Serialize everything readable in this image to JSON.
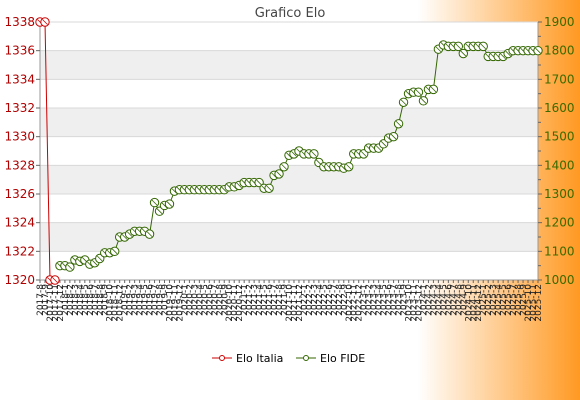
{
  "chart_data": {
    "type": "line",
    "title": "Grafico Elo",
    "xlabel": "",
    "ylabel": "",
    "x": [
      "2017-8",
      "2017-9",
      "2017-10",
      "2017-11",
      "2017-12",
      "2018-1",
      "2018-2",
      "2018-3",
      "2018-4",
      "2018-5",
      "2018-6",
      "2018-7",
      "2018-8",
      "2018-9",
      "2018-10",
      "2018-11",
      "2018-12",
      "2019-1",
      "2019-2",
      "2019-3",
      "2019-4",
      "2019-5",
      "2019-6",
      "2019-7",
      "2019-8",
      "2019-9",
      "2019-10",
      "2019-11",
      "2019-12",
      "2020-1",
      "2020-2",
      "2020-3",
      "2020-4",
      "2020-5",
      "2020-6",
      "2020-7",
      "2020-8",
      "2020-9",
      "2020-10",
      "2020-11",
      "2020-12",
      "2021-1",
      "2021-2",
      "2021-3",
      "2021-4",
      "2021-5",
      "2021-6",
      "2021-7",
      "2021-8",
      "2021-9",
      "2021-10",
      "2021-11",
      "2021-12",
      "2022-1",
      "2022-2",
      "2022-3",
      "2022-4",
      "2022-5",
      "2022-6",
      "2022-7",
      "2022-8",
      "2022-9",
      "2022-10",
      "2022-11",
      "2022-12",
      "2023-1",
      "2023-2",
      "2023-3",
      "2023-4",
      "2023-5",
      "2023-6",
      "2023-7",
      "2023-8",
      "2023-9",
      "2023-10",
      "2023-11",
      "2023-12",
      "2024-1",
      "2024-2",
      "2024-3",
      "2024-4",
      "2024-5",
      "2024-6",
      "2024-7",
      "2024-8",
      "2024-9",
      "2024-10",
      "2024-11",
      "2024-12",
      "2025-1",
      "2025-2",
      "2025-3",
      "2025-4",
      "2025-5",
      "2025-6",
      "2025-7",
      "2025-8",
      "2025-9",
      "2025-10",
      "2025-11",
      "2025-12"
    ],
    "x_tick_labels": [
      "2017-8",
      "2017-9",
      "2017-10",
      "2017-11",
      "2017-12",
      "2018-1",
      "2018-2",
      "2018-3",
      "2018-4",
      "2018-5",
      "2018-6",
      "2018-7",
      "2018-8",
      "2018-9",
      "2018-10",
      "2018-11",
      "2018-12",
      "2019-1",
      "2019-2",
      "2019-3",
      "2019-4",
      "2019-5",
      "2019-6",
      "2019-7",
      "2019-8",
      "2019-9",
      "2019-10",
      "2019-11",
      "2019-12",
      "2020-1",
      "2020-2",
      "2020-3",
      "2020-4",
      "2020-5",
      "2020-6",
      "2020-7",
      "2020-8",
      "2020-9",
      "2020-10",
      "2020-11",
      "2020-12",
      "2021-1",
      "2021-2",
      "2021-3",
      "2021-4",
      "2021-5",
      "2021-6",
      "2021-7",
      "2021-8",
      "2021-9",
      "2021-10",
      "2021-11",
      "2021-12",
      "2022-1",
      "2022-2",
      "2022-3",
      "2022-4",
      "2022-5",
      "2022-6",
      "2022-7",
      "2022-8",
      "2022-9",
      "2022-10",
      "2022-11",
      "2022-12",
      "2023-1",
      "2023-2",
      "2023-3",
      "2023-4",
      "2023-5",
      "2023-6",
      "2023-7",
      "2023-8",
      "2023-9",
      "2023-10",
      "2023-11",
      "2023-12",
      "2024-1",
      "2024-2",
      "2024-3",
      "2024-4",
      "2024-5",
      "2024-6",
      "2024-7",
      "2024-8",
      "2024-9",
      "2024-10",
      "2024-11",
      "2024-12",
      "2025-1",
      "2025-2",
      "2025-3",
      "2025-4",
      "2025-5",
      "2025-6",
      "2025-7",
      "2025-8",
      "2025-9",
      "2025-10",
      "2025-11",
      "2025-12"
    ],
    "y_left": {
      "range": [
        1320,
        1338
      ],
      "ticks": [
        1320,
        1322,
        1324,
        1326,
        1328,
        1330,
        1332,
        1334,
        1336,
        1338
      ],
      "color": "#cc0000"
    },
    "y_right": {
      "range": [
        1000,
        1900
      ],
      "ticks": [
        1000,
        1100,
        1200,
        1300,
        1400,
        1500,
        1600,
        1700,
        1800,
        1900
      ],
      "color": "#336600"
    },
    "series": [
      {
        "name": "Elo Italia",
        "axis": "left",
        "color": "#cc0000",
        "values": [
          1338,
          1338,
          1320,
          1320,
          null,
          null,
          null,
          null,
          null,
          null,
          null,
          null,
          null,
          null,
          null,
          null,
          null,
          null,
          null,
          null,
          null,
          null,
          null,
          null,
          null,
          null,
          null,
          null,
          null,
          null,
          null,
          null,
          null,
          null,
          null,
          null,
          null,
          null,
          null,
          null,
          null,
          null,
          null,
          null,
          null,
          null,
          null,
          null,
          null,
          null,
          null,
          null,
          null,
          null,
          null,
          null,
          null,
          null,
          null,
          null,
          null,
          null,
          null,
          null,
          null,
          null,
          null,
          null,
          null,
          null,
          null,
          null,
          null,
          null,
          null,
          null,
          null,
          null,
          null,
          null,
          null,
          null,
          null,
          null,
          null,
          null,
          null,
          null,
          null,
          null,
          null,
          null,
          null,
          null,
          null,
          null,
          null,
          null,
          null,
          null,
          null
        ]
      },
      {
        "name": "Elo FIDE",
        "axis": "right",
        "color": "#336600",
        "values": [
          null,
          null,
          null,
          null,
          1050,
          1050,
          1045,
          1070,
          1065,
          1070,
          1055,
          1060,
          1075,
          1095,
          1095,
          1100,
          1150,
          1150,
          1160,
          1170,
          1170,
          1170,
          1160,
          1270,
          1240,
          1260,
          1265,
          1310,
          1315,
          1315,
          1315,
          1315,
          1315,
          1315,
          1315,
          1315,
          1315,
          1315,
          1325,
          1325,
          1330,
          1340,
          1340,
          1340,
          1340,
          1320,
          1320,
          1365,
          1370,
          1395,
          1435,
          1440,
          1450,
          1440,
          1440,
          1440,
          1410,
          1395,
          1395,
          1395,
          1395,
          1390,
          1395,
          1440,
          1440,
          1440,
          1460,
          1460,
          1460,
          1475,
          1495,
          1500,
          1545,
          1620,
          1650,
          1655,
          1655,
          1625,
          1665,
          1665,
          1805,
          1820,
          1815,
          1815,
          1815,
          1790,
          1815,
          1815,
          1815,
          1815,
          1780,
          1780,
          1780,
          1780,
          1790,
          1800,
          1800,
          1800,
          1800,
          1800,
          1800
        ]
      }
    ],
    "grid": "horizontal",
    "legend": "bottom-center",
    "background_gradient": [
      "#ffffff",
      "#ff9922"
    ]
  }
}
